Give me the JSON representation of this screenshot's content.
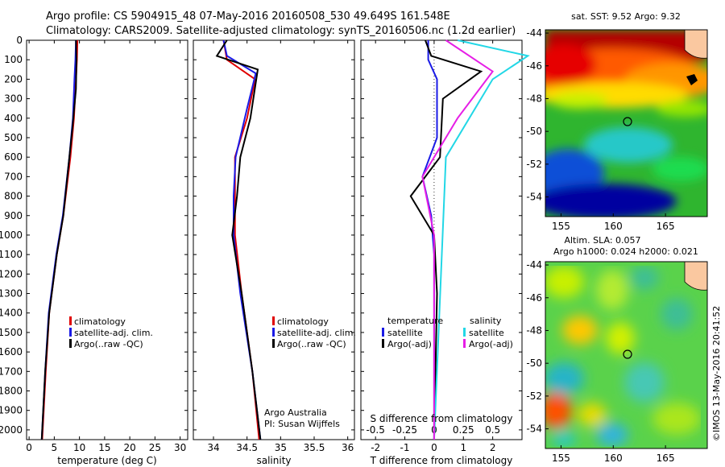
{
  "title": {
    "line1": "Argo profile: CS 5904915_48 07-May-2016 20160508_530 49.649S 161.548E",
    "line2": "Climatology: CARS2009. Satellite-adjusted climatology: synTS_20160506.nc (1.2d earlier)"
  },
  "legend_profiles": [
    "climatology",
    "satellite-adj. clim.",
    "Argo(..raw -QC)"
  ],
  "legend_diff": {
    "temperature_head": "temperature",
    "salinity_head": "salinity",
    "items_t": [
      "satellite",
      "Argo(-adj)"
    ],
    "items_s": [
      "satellite",
      "Argo(-adj)"
    ]
  },
  "credit": {
    "line1": "Argo Australia",
    "line2": "PI: Susan Wijffels"
  },
  "map_sst": {
    "title": "sat. SST: 9.52 Argo: 9.32"
  },
  "map_sla": {
    "title1": "Altim. SLA: 0.057",
    "title2": "Argo h1000: 0.024 h2000: 0.021"
  },
  "watermark": "©IMOS 13-May-2016 20:41:52",
  "colors": {
    "climatology": "#e00000",
    "satellite": "#1a1ae6",
    "argo": "#000000",
    "sat_sal": "#22d7e6",
    "argo_sal": "#e61ee6"
  },
  "chart_data": [
    {
      "type": "line",
      "xlabel": "temperature (deg C)",
      "xlim": [
        -0.5,
        31.5
      ],
      "ylim": [
        0,
        2050
      ],
      "xticks": [
        "0",
        "5",
        "10",
        "15",
        "20",
        "25",
        "30"
      ],
      "yticks": [
        "0",
        "100",
        "200",
        "300",
        "400",
        "500",
        "600",
        "700",
        "800",
        "900",
        "1000",
        "1100",
        "1200",
        "1300",
        "1400",
        "1500",
        "1600",
        "1700",
        "1800",
        "1900",
        "2000"
      ],
      "series": [
        {
          "name": "climatology",
          "points": [
            [
              9.6,
              0
            ],
            [
              9.5,
              100
            ],
            [
              9.3,
              200
            ],
            [
              8.9,
              400
            ],
            [
              8.2,
              600
            ],
            [
              6.8,
              900
            ],
            [
              5.5,
              1100
            ],
            [
              4.0,
              1400
            ],
            [
              3.3,
              1700
            ],
            [
              2.6,
              2050
            ]
          ]
        },
        {
          "name": "satellite-adj. clim.",
          "points": [
            [
              9.3,
              0
            ],
            [
              9.2,
              100
            ],
            [
              9.0,
              200
            ],
            [
              8.7,
              400
            ],
            [
              8.0,
              600
            ],
            [
              6.7,
              900
            ],
            [
              5.4,
              1100
            ],
            [
              3.9,
              1400
            ],
            [
              3.2,
              1700
            ],
            [
              2.5,
              2050
            ]
          ]
        },
        {
          "name": "Argo(..raw -QC)",
          "points": [
            [
              9.3,
              0
            ],
            [
              9.4,
              100
            ],
            [
              9.3,
              250
            ],
            [
              8.6,
              450
            ],
            [
              8.0,
              600
            ],
            [
              6.8,
              900
            ],
            [
              5.5,
              1100
            ],
            [
              4.0,
              1400
            ],
            [
              3.2,
              1700
            ],
            [
              2.5,
              2050
            ]
          ]
        }
      ]
    },
    {
      "type": "line",
      "xlabel": "salinity",
      "xlim": [
        33.7,
        36.1
      ],
      "ylim": [
        0,
        2050
      ],
      "xticks": [
        "34",
        "34.5",
        "35",
        "35.5",
        "36"
      ],
      "series": [
        {
          "name": "climatology",
          "points": [
            [
              34.15,
              0
            ],
            [
              34.2,
              100
            ],
            [
              34.62,
              200
            ],
            [
              34.5,
              400
            ],
            [
              34.32,
              600
            ],
            [
              34.32,
              800
            ],
            [
              34.32,
              1000
            ],
            [
              34.42,
              1300
            ],
            [
              34.58,
              1700
            ],
            [
              34.68,
              2050
            ]
          ]
        },
        {
          "name": "satellite-adj. clim.",
          "points": [
            [
              34.15,
              0
            ],
            [
              34.2,
              80
            ],
            [
              34.63,
              170
            ],
            [
              34.5,
              350
            ],
            [
              34.33,
              600
            ],
            [
              34.3,
              800
            ],
            [
              34.3,
              1000
            ],
            [
              34.4,
              1300
            ],
            [
              34.58,
              1700
            ],
            [
              34.7,
              2050
            ]
          ]
        },
        {
          "name": "Argo(..raw -QC)",
          "points": [
            [
              34.2,
              0
            ],
            [
              34.05,
              80
            ],
            [
              34.66,
              150
            ],
            [
              34.55,
              400
            ],
            [
              34.4,
              600
            ],
            [
              34.35,
              800
            ],
            [
              34.28,
              1000
            ],
            [
              34.42,
              1300
            ],
            [
              34.58,
              1700
            ],
            [
              34.7,
              2050
            ]
          ]
        }
      ]
    },
    {
      "type": "line",
      "xlabel": "T difference from climatology",
      "xlabel_top": "S difference from climatology",
      "xlim": [
        -2.5,
        3.0
      ],
      "ylim": [
        0,
        2050
      ],
      "xticks": [
        "-2",
        "-1",
        "0",
        "1",
        "2"
      ],
      "xticks_s": [
        "-0.5",
        "-0.25",
        "0",
        "0.25",
        "0.5"
      ],
      "series": [
        {
          "name": "satellite",
          "points": [
            [
              -0.2,
              0
            ],
            [
              -0.2,
              100
            ],
            [
              0.1,
              200
            ],
            [
              0.1,
              500
            ],
            [
              -0.4,
              700
            ],
            [
              -0.1,
              900
            ],
            [
              0,
              1100
            ],
            [
              0,
              2050
            ]
          ]
        },
        {
          "name": "Argo(-adj)",
          "points": [
            [
              -0.3,
              0
            ],
            [
              -0.1,
              80
            ],
            [
              1.6,
              160
            ],
            [
              0.3,
              300
            ],
            [
              0.2,
              600
            ],
            [
              -0.8,
              800
            ],
            [
              0,
              1000
            ],
            [
              0.1,
              1300
            ],
            [
              0,
              2050
            ]
          ]
        },
        {
          "name": "satellite (salinity)",
          "points": [
            [
              0.2,
              0
            ],
            [
              0.8,
              80
            ],
            [
              0.5,
              200
            ],
            [
              0.1,
              600
            ],
            [
              0,
              2050
            ]
          ]
        },
        {
          "name": "Argo(-adj) (salinity)",
          "points": [
            [
              0.1,
              0
            ],
            [
              0.5,
              160
            ],
            [
              0.2,
              400
            ],
            [
              -0.1,
              700
            ],
            [
              0,
              1000
            ],
            [
              0,
              2050
            ]
          ]
        }
      ]
    },
    {
      "type": "heatmap",
      "title": "sat. SST: 9.52 Argo: 9.32",
      "xticks": [
        "155",
        "160",
        "165"
      ],
      "yticks": [
        "-44",
        "-46",
        "-48",
        "-50",
        "-52",
        "-54"
      ],
      "xlim": [
        153.5,
        169
      ],
      "ylim": [
        -55.2,
        -43.8
      ],
      "argo_position": [
        161.548,
        -49.649
      ]
    },
    {
      "type": "heatmap",
      "title": "Altim. SLA: 0.057",
      "xticks": [
        "155",
        "160",
        "165"
      ],
      "yticks": [
        "-44",
        "-46",
        "-48",
        "-50",
        "-52",
        "-54"
      ],
      "xlim": [
        153.5,
        169
      ],
      "ylim": [
        -55.2,
        -43.8
      ],
      "argo_position": [
        161.548,
        -49.649
      ]
    }
  ]
}
